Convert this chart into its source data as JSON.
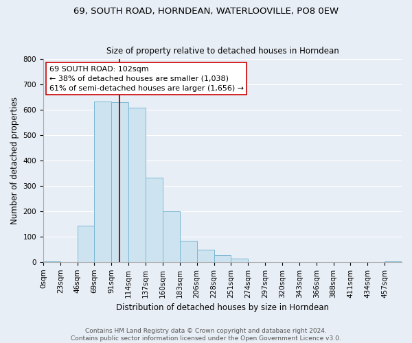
{
  "title": "69, SOUTH ROAD, HORNDEAN, WATERLOOVILLE, PO8 0EW",
  "subtitle": "Size of property relative to detached houses in Horndean",
  "xlabel": "Distribution of detached houses by size in Horndean",
  "ylabel": "Number of detached properties",
  "bin_labels": [
    "0sqm",
    "23sqm",
    "46sqm",
    "69sqm",
    "91sqm",
    "114sqm",
    "137sqm",
    "160sqm",
    "183sqm",
    "206sqm",
    "228sqm",
    "251sqm",
    "274sqm",
    "297sqm",
    "320sqm",
    "343sqm",
    "366sqm",
    "388sqm",
    "411sqm",
    "434sqm",
    "457sqm"
  ],
  "bar_heights": [
    2,
    0,
    143,
    633,
    630,
    610,
    333,
    200,
    83,
    47,
    27,
    13,
    0,
    0,
    0,
    0,
    0,
    0,
    0,
    0,
    3
  ],
  "bar_color": "#cde4f0",
  "bar_edge_color": "#7ab8d4",
  "vline_color": "#cc0000",
  "annotation_text": "69 SOUTH ROAD: 102sqm\n← 38% of detached houses are smaller (1,038)\n61% of semi-detached houses are larger (1,656) →",
  "annotation_box_color": "#ffffff",
  "annotation_box_edge": "#cc0000",
  "ylim": [
    0,
    800
  ],
  "yticks": [
    0,
    100,
    200,
    300,
    400,
    500,
    600,
    700,
    800
  ],
  "footer1": "Contains HM Land Registry data © Crown copyright and database right 2024.",
  "footer2": "Contains public sector information licensed under the Open Government Licence v3.0.",
  "bg_color": "#e8eef5",
  "plot_bg_color": "#e8eef5",
  "grid_color": "#ffffff",
  "title_fontsize": 9.5,
  "subtitle_fontsize": 8.5,
  "xlabel_fontsize": 8.5,
  "ylabel_fontsize": 8.5,
  "tick_fontsize": 7.5,
  "annotation_fontsize": 8.0,
  "footer_fontsize": 6.5
}
